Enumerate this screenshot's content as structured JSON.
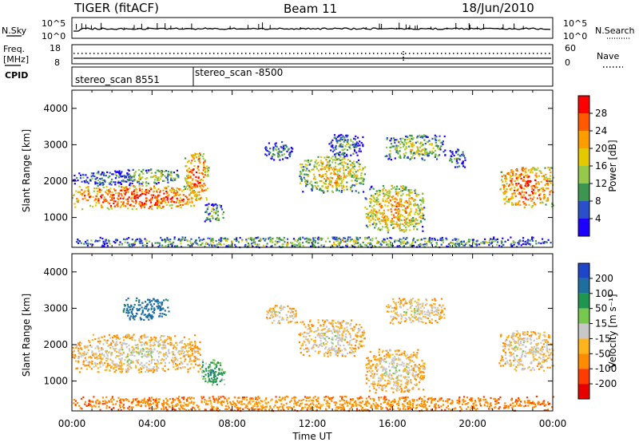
{
  "header": {
    "title": "TIGER (fitACF)",
    "beam": "Beam 11",
    "date": "18/Jun/2010"
  },
  "nsky_panel": {
    "left_label": "N.Sky",
    "right_label": "N.Search",
    "left_ticks": [
      "10^5",
      "10^0"
    ],
    "right_ticks": [
      "10^5",
      "10^0"
    ]
  },
  "freq_panel": {
    "left_label_line1": "Freq.",
    "left_label_line2": "[MHz]",
    "right_label": "Nave",
    "left_ticks": [
      "18",
      "8"
    ],
    "right_ticks": [
      "60",
      "0"
    ]
  },
  "cpid_panel": {
    "label": "CPID",
    "segments": [
      {
        "text": "stereo_scan 8551",
        "start_hour": 0
      },
      {
        "text": "stereo_scan -8500",
        "start_hour": 6.0
      }
    ]
  },
  "panels": {
    "power": {
      "ylabel": "Slant Range [km]"
    },
    "velocity": {
      "ylabel": "Slant Range [km]"
    }
  },
  "power_colorbar": {
    "label": "Power [dB]",
    "ticks": [
      "28",
      "24",
      "20",
      "16",
      "12",
      "8",
      "4"
    ],
    "colors": [
      "#ff0000",
      "#ff5a00",
      "#ff9c00",
      "#e6c800",
      "#96c84b",
      "#3c9650",
      "#2a4fc8",
      "#1e00ff"
    ]
  },
  "velocity_colorbar": {
    "label": "Velocity [m s⁻¹]",
    "ticks": [
      "200",
      "100",
      "50",
      "15",
      "-15",
      "-50",
      "-100",
      "-200"
    ],
    "colors": [
      "#1e46c8",
      "#1e6ea0",
      "#1e9650",
      "#78c850",
      "#c8c8c8",
      "#ffb41e",
      "#ff8c00",
      "#ff3c00",
      "#e60000"
    ]
  },
  "chart_data": [
    {
      "type": "heatmap",
      "name": "power",
      "xlabel": "Time UT",
      "ylabel": "Slant Range [km]",
      "xlim": [
        0,
        24
      ],
      "ylim": [
        180,
        4500
      ],
      "x_ticks": [
        "00:00",
        "04:00",
        "08:00",
        "12:00",
        "16:00",
        "20:00",
        "00:00"
      ],
      "y_ticks": [
        1000,
        2000,
        3000,
        4000
      ],
      "colorbar_label": "Power [dB]",
      "colorbar_ticks": [
        4,
        8,
        12,
        16,
        20,
        24,
        28
      ],
      "regions": [
        {
          "t": [
            0.0,
            6.2
          ],
          "r": [
            1250,
            1900
          ],
          "level": 26
        },
        {
          "t": [
            0.0,
            3.0
          ],
          "r": [
            1900,
            2300
          ],
          "level": 8
        },
        {
          "t": [
            2.5,
            5.3
          ],
          "r": [
            1950,
            2350
          ],
          "level": 14
        },
        {
          "t": [
            5.6,
            6.8
          ],
          "r": [
            1500,
            2800
          ],
          "level": 24
        },
        {
          "t": [
            6.6,
            7.6
          ],
          "r": [
            900,
            1400
          ],
          "level": 12
        },
        {
          "t": [
            9.6,
            11.0
          ],
          "r": [
            2600,
            3100
          ],
          "level": 8
        },
        {
          "t": [
            11.3,
            14.6
          ],
          "r": [
            1700,
            2700
          ],
          "level": 18
        },
        {
          "t": [
            12.8,
            14.5
          ],
          "r": [
            2700,
            3300
          ],
          "level": 9
        },
        {
          "t": [
            14.6,
            17.6
          ],
          "r": [
            600,
            1900
          ],
          "level": 20
        },
        {
          "t": [
            15.6,
            18.6
          ],
          "r": [
            2600,
            3300
          ],
          "level": 14
        },
        {
          "t": [
            18.7,
            19.6
          ],
          "r": [
            2400,
            2900
          ],
          "level": 8
        },
        {
          "t": [
            21.3,
            24.0
          ],
          "r": [
            1300,
            2400
          ],
          "level": 25
        },
        {
          "t": [
            0.0,
            24.0
          ],
          "r": [
            200,
            480
          ],
          "level": 12
        }
      ]
    },
    {
      "type": "heatmap",
      "name": "velocity",
      "xlabel": "Time UT",
      "ylabel": "Slant Range [km]",
      "xlim": [
        0,
        24
      ],
      "ylim": [
        180,
        4500
      ],
      "x_ticks": [
        "00:00",
        "04:00",
        "08:00",
        "12:00",
        "16:00",
        "20:00",
        "00:00"
      ],
      "y_ticks": [
        1000,
        2000,
        3000,
        4000
      ],
      "colorbar_label": "Velocity [m s⁻¹]",
      "colorbar_ticks": [
        -200,
        -100,
        -50,
        -15,
        15,
        50,
        100,
        200
      ],
      "regions": [
        {
          "t": [
            0.0,
            6.4
          ],
          "r": [
            1250,
            2300
          ],
          "level": 0
        },
        {
          "t": [
            2.5,
            4.8
          ],
          "r": [
            2700,
            3300
          ],
          "level": 120
        },
        {
          "t": [
            6.4,
            7.6
          ],
          "r": [
            900,
            1600
          ],
          "level": 60
        },
        {
          "t": [
            9.6,
            11.2
          ],
          "r": [
            2600,
            3100
          ],
          "level": 0
        },
        {
          "t": [
            11.3,
            14.6
          ],
          "r": [
            1700,
            2700
          ],
          "level": 0
        },
        {
          "t": [
            14.6,
            17.6
          ],
          "r": [
            700,
            1900
          ],
          "level": 0
        },
        {
          "t": [
            15.6,
            18.6
          ],
          "r": [
            2600,
            3300
          ],
          "level": 0
        },
        {
          "t": [
            21.3,
            24.0
          ],
          "r": [
            1300,
            2400
          ],
          "level": 0
        },
        {
          "t": [
            0.0,
            24.0
          ],
          "r": [
            200,
            600
          ],
          "level": -40
        }
      ]
    }
  ]
}
